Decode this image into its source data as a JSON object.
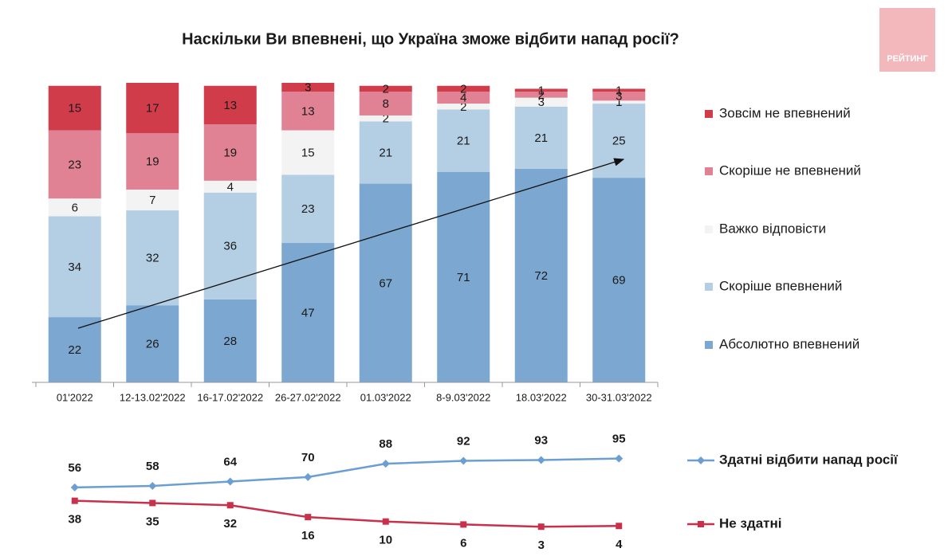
{
  "logo": "РЕЙТИНГ",
  "chart_data": [
    {
      "type": "bar",
      "stacked": true,
      "title": "Наскільки Ви впевнені, що Україна зможе відбити напад росії?",
      "categories": [
        "01'2022",
        "12-13.02'2022",
        "16-17.02'2022",
        "26-27.02'2022",
        "01.03'2022",
        "8-9.03'2022",
        "18.03'2022",
        "30-31.03'2022"
      ],
      "series": [
        {
          "name": "Абсолютно впевнений",
          "color": "#7ba7d0",
          "values": [
            22,
            26,
            28,
            47,
            67,
            71,
            72,
            69
          ]
        },
        {
          "name": "Скоріше впевнений",
          "color": "#b4cee4",
          "values": [
            34,
            32,
            36,
            23,
            21,
            21,
            21,
            25
          ]
        },
        {
          "name": "Важко відповісти",
          "color": "#f3f3f3",
          "values": [
            6,
            7,
            4,
            15,
            2,
            2,
            3,
            1
          ]
        },
        {
          "name": "Скоріше не впевнений",
          "color": "#e08293",
          "values": [
            23,
            19,
            19,
            13,
            8,
            4,
            2,
            3
          ]
        },
        {
          "name": "Зовсім не впевнений",
          "color": "#d13c4b",
          "values": [
            15,
            17,
            13,
            3,
            2,
            2,
            1,
            1
          ]
        }
      ],
      "ylim": [
        0,
        101
      ],
      "legend": "right"
    },
    {
      "type": "line",
      "series": [
        {
          "name": "Здатні відбити напад росії",
          "color": "#6b9fd3",
          "values": [
            56,
            58,
            64,
            70,
            88,
            92,
            93,
            95
          ]
        },
        {
          "name": "Не здатні",
          "color": "#c9304c",
          "values": [
            38,
            35,
            32,
            16,
            10,
            6,
            3,
            4
          ]
        }
      ],
      "ylim": [
        0,
        100
      ],
      "legend": "right"
    }
  ]
}
